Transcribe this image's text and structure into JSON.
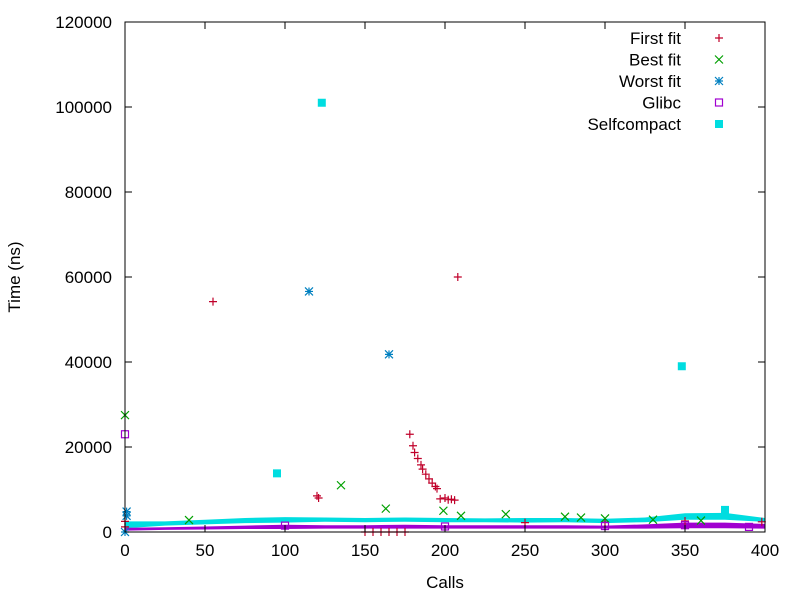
{
  "chart_data": {
    "type": "scatter",
    "title": "",
    "xlabel": "Calls",
    "ylabel": "Time (ns)",
    "xlim": [
      0,
      400
    ],
    "ylim": [
      0,
      120000
    ],
    "xticks": [
      0,
      50,
      100,
      150,
      200,
      250,
      300,
      350,
      400
    ],
    "yticks": [
      0,
      20000,
      40000,
      60000,
      80000,
      100000,
      120000
    ],
    "grid": false,
    "legend_position": "top-right",
    "series": [
      {
        "name": "First fit",
        "color": "#c0002a",
        "marker": "plus",
        "points": [
          [
            0,
            1200
          ],
          [
            0,
            2500
          ],
          [
            55,
            54200
          ],
          [
            120,
            8500
          ],
          [
            121,
            8000
          ],
          [
            150,
            0
          ],
          [
            155,
            0
          ],
          [
            160,
            0
          ],
          [
            165,
            0
          ],
          [
            170,
            0
          ],
          [
            175,
            0
          ],
          [
            178,
            23000
          ],
          [
            180,
            20300
          ],
          [
            181,
            18700
          ],
          [
            183,
            17300
          ],
          [
            185,
            15800
          ],
          [
            186,
            14800
          ],
          [
            188,
            13600
          ],
          [
            190,
            12500
          ],
          [
            192,
            11500
          ],
          [
            194,
            10700
          ],
          [
            195,
            10200
          ],
          [
            197,
            7800
          ],
          [
            200,
            8000
          ],
          [
            202,
            7600
          ],
          [
            204,
            7700
          ],
          [
            206,
            7500
          ],
          [
            208,
            60000
          ],
          [
            250,
            2200
          ],
          [
            300,
            2300
          ],
          [
            350,
            2600
          ],
          [
            398,
            2400
          ]
        ]
      },
      {
        "name": "Best fit",
        "color": "#00a000",
        "marker": "cross",
        "points": [
          [
            0,
            27500
          ],
          [
            40,
            2800
          ],
          [
            135,
            11000
          ],
          [
            163,
            5500
          ],
          [
            199,
            5000
          ],
          [
            210,
            3800
          ],
          [
            238,
            4200
          ],
          [
            275,
            3600
          ],
          [
            285,
            3400
          ],
          [
            300,
            3200
          ],
          [
            330,
            2900
          ],
          [
            360,
            2700
          ]
        ]
      },
      {
        "name": "Worst fit",
        "color": "#0080c0",
        "marker": "star",
        "points": [
          [
            0,
            0
          ],
          [
            1,
            4800
          ],
          [
            1,
            3800
          ],
          [
            115,
            56600
          ],
          [
            165,
            41800
          ]
        ]
      },
      {
        "name": "Glibc",
        "color": "#a000d0",
        "marker": "square-open",
        "points": [
          [
            0,
            23000
          ],
          [
            100,
            1500
          ],
          [
            200,
            1300
          ],
          [
            300,
            1400
          ],
          [
            350,
            1600
          ],
          [
            390,
            1200
          ]
        ]
      },
      {
        "name": "Selfcompact",
        "color": "#00dde0",
        "marker": "square-filled",
        "points": [
          [
            95,
            13800
          ],
          [
            123,
            101000
          ],
          [
            348,
            39000
          ],
          [
            375,
            5200
          ]
        ]
      }
    ],
    "bands": [
      {
        "series": "Selfcompact",
        "color": "#00dde0",
        "x": [
          0,
          25,
          50,
          75,
          100,
          125,
          150,
          175,
          200,
          225,
          250,
          275,
          300,
          325,
          350,
          375,
          400
        ],
        "low": [
          900,
          1500,
          1800,
          2100,
          2200,
          2400,
          2300,
          2400,
          2300,
          2300,
          2200,
          2300,
          2100,
          2300,
          2900,
          2900,
          2400
        ],
        "high": [
          2500,
          2500,
          2900,
          3300,
          3500,
          3400,
          3300,
          3400,
          3300,
          3200,
          3300,
          3300,
          3100,
          3400,
          4400,
          4500,
          3300
        ]
      },
      {
        "series": "Glibc",
        "color": "#a000d0",
        "x": [
          0,
          25,
          50,
          75,
          100,
          125,
          150,
          175,
          200,
          225,
          250,
          275,
          300,
          325,
          350,
          375,
          400
        ],
        "low": [
          300,
          500,
          600,
          700,
          700,
          800,
          800,
          800,
          800,
          800,
          800,
          800,
          800,
          800,
          900,
          900,
          800
        ],
        "high": [
          1000,
          1100,
          1300,
          1500,
          1700,
          1600,
          1600,
          1700,
          1600,
          1600,
          1600,
          1600,
          1500,
          1800,
          2200,
          2200,
          1900
        ]
      }
    ]
  }
}
